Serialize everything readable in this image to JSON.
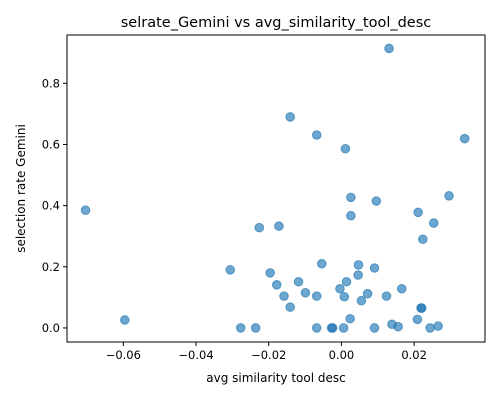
{
  "chart_data": {
    "type": "scatter",
    "title": "selrate_Gemini vs avg_similarity_tool_desc",
    "xlabel": "avg similarity tool desc",
    "ylabel": "selection rate Gemini",
    "xlim": [
      -0.0755,
      0.0395
    ],
    "ylim": [
      -0.046,
      0.958
    ],
    "xticks": [
      -0.06,
      -0.04,
      -0.02,
      0.0,
      0.02
    ],
    "xtick_labels": [
      "−0.06",
      "−0.04",
      "−0.02",
      "0.00",
      "0.02"
    ],
    "yticks": [
      0.0,
      0.2,
      0.4,
      0.6,
      0.8
    ],
    "ytick_labels": [
      "0.0",
      "0.2",
      "0.4",
      "0.6",
      "0.8"
    ],
    "grid": false,
    "marker_color": "#1f77b4",
    "marker_alpha": 0.65,
    "points": [
      {
        "x": -0.0704,
        "y": 0.385
      },
      {
        "x": -0.0596,
        "y": 0.026
      },
      {
        "x": -0.0306,
        "y": 0.19
      },
      {
        "x": -0.0277,
        "y": 0.0
      },
      {
        "x": -0.0236,
        "y": 0.0
      },
      {
        "x": -0.0226,
        "y": 0.328
      },
      {
        "x": -0.0196,
        "y": 0.18
      },
      {
        "x": -0.0178,
        "y": 0.141
      },
      {
        "x": -0.0172,
        "y": 0.333
      },
      {
        "x": -0.0158,
        "y": 0.104
      },
      {
        "x": -0.0141,
        "y": 0.068
      },
      {
        "x": -0.0141,
        "y": 0.69
      },
      {
        "x": -0.0118,
        "y": 0.151
      },
      {
        "x": -0.0099,
        "y": 0.115
      },
      {
        "x": -0.0068,
        "y": 0.104
      },
      {
        "x": -0.0068,
        "y": 0.631
      },
      {
        "x": -0.0068,
        "y": 0.0
      },
      {
        "x": -0.0054,
        "y": 0.21
      },
      {
        "x": -0.0027,
        "y": 0.0
      },
      {
        "x": -0.0024,
        "y": 0.0
      },
      {
        "x": -0.0004,
        "y": 0.128
      },
      {
        "x": 0.0006,
        "y": 0.0
      },
      {
        "x": 0.0008,
        "y": 0.102
      },
      {
        "x": 0.0011,
        "y": 0.586
      },
      {
        "x": 0.0014,
        "y": 0.151
      },
      {
        "x": 0.0024,
        "y": 0.03
      },
      {
        "x": 0.0026,
        "y": 0.367
      },
      {
        "x": 0.0026,
        "y": 0.427
      },
      {
        "x": 0.0046,
        "y": 0.173
      },
      {
        "x": 0.0047,
        "y": 0.206
      },
      {
        "x": 0.0055,
        "y": 0.089
      },
      {
        "x": 0.0072,
        "y": 0.112
      },
      {
        "x": 0.0091,
        "y": 0.0
      },
      {
        "x": 0.0091,
        "y": 0.196
      },
      {
        "x": 0.0096,
        "y": 0.415
      },
      {
        "x": 0.0124,
        "y": 0.104
      },
      {
        "x": 0.0131,
        "y": 0.914
      },
      {
        "x": 0.0139,
        "y": 0.012
      },
      {
        "x": 0.0156,
        "y": 0.004
      },
      {
        "x": 0.0166,
        "y": 0.128
      },
      {
        "x": 0.0209,
        "y": 0.028
      },
      {
        "x": 0.0211,
        "y": 0.378
      },
      {
        "x": 0.0219,
        "y": 0.065
      },
      {
        "x": 0.0221,
        "y": 0.065
      },
      {
        "x": 0.0224,
        "y": 0.29
      },
      {
        "x": 0.0244,
        "y": 0.0
      },
      {
        "x": 0.0254,
        "y": 0.343
      },
      {
        "x": 0.0266,
        "y": 0.006
      },
      {
        "x": 0.0296,
        "y": 0.432
      },
      {
        "x": 0.0339,
        "y": 0.619
      }
    ]
  }
}
